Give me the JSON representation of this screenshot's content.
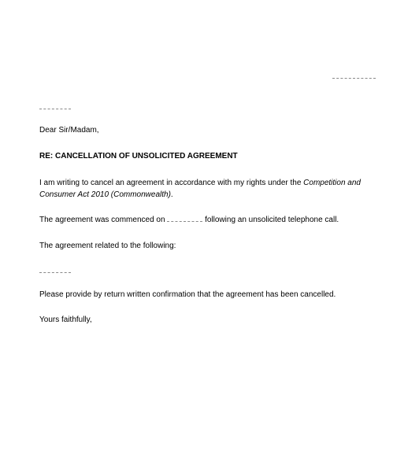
{
  "salutation": "Dear Sir/Madam,",
  "subject": "RE: CANCELLATION OF UNSOLICITED AGREEMENT",
  "para1_part1": "I am writing to cancel an agreement in accordance with my rights under the ",
  "para1_act": "Competition and Consumer Act 2010 (Commonwealth)",
  "para1_part2": ".",
  "para2_part1": "The agreement was commenced on ",
  "para2_part2": " following an unsolicited telephone call.",
  "para3": "The agreement related to the following:",
  "para4": "Please provide by return written confirmation that the agreement has been cancelled.",
  "closing": "Yours faithfully,"
}
